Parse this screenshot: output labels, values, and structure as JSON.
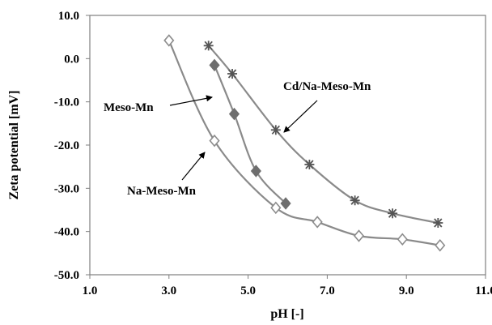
{
  "chart_data": {
    "type": "scatter",
    "xlabel": "pH [-]",
    "ylabel": "Zeta potential [mV]",
    "xlim": [
      1.0,
      11.0
    ],
    "ylim": [
      -50.0,
      10.0
    ],
    "x_ticks": [
      "1.0",
      "3.0",
      "5.0",
      "7.0",
      "9.0",
      "11.0"
    ],
    "x_tick_values": [
      1,
      3,
      5,
      7,
      9,
      11
    ],
    "y_ticks": [
      "10.0",
      "0.0",
      "-10.0",
      "-20.0",
      "-30.0",
      "-40.0",
      "-50.0"
    ],
    "y_tick_values": [
      10,
      0,
      -10,
      -20,
      -30,
      -40,
      -50
    ],
    "grid": false,
    "legend": "none",
    "series": [
      {
        "name": "Meso-Mn",
        "marker": "filled-diamond",
        "color": "#6e6e6e",
        "points": [
          [
            4.15,
            -1.5
          ],
          [
            4.65,
            -12.8
          ],
          [
            5.2,
            -26.0
          ],
          [
            5.95,
            -33.5
          ]
        ]
      },
      {
        "name": "Na-Meso-Mn",
        "marker": "open-diamond",
        "color": "#8c8c8c",
        "points": [
          [
            3.0,
            4.2
          ],
          [
            4.15,
            -19.0
          ],
          [
            5.7,
            -34.5
          ],
          [
            6.75,
            -37.8
          ],
          [
            7.8,
            -41.0
          ],
          [
            8.9,
            -41.8
          ],
          [
            9.85,
            -43.2
          ]
        ]
      },
      {
        "name": "Cd/Na-Meso-Mn",
        "marker": "asterisk",
        "color": "#555555",
        "points": [
          [
            4.0,
            3.0
          ],
          [
            4.6,
            -3.5
          ],
          [
            5.7,
            -16.5
          ],
          [
            6.55,
            -24.5
          ],
          [
            7.7,
            -32.8
          ],
          [
            8.65,
            -35.8
          ],
          [
            9.8,
            -38.0
          ]
        ]
      }
    ],
    "annotations": [
      {
        "label": "Meso-Mn",
        "points_to": [
          4.1,
          -8.7
        ]
      },
      {
        "label": "Na-Meso-Mn",
        "points_to": [
          4.05,
          -20.5
        ]
      },
      {
        "label": "Cd/Na-Meso-Mn",
        "points_to": [
          5.9,
          -18.0
        ]
      }
    ]
  }
}
